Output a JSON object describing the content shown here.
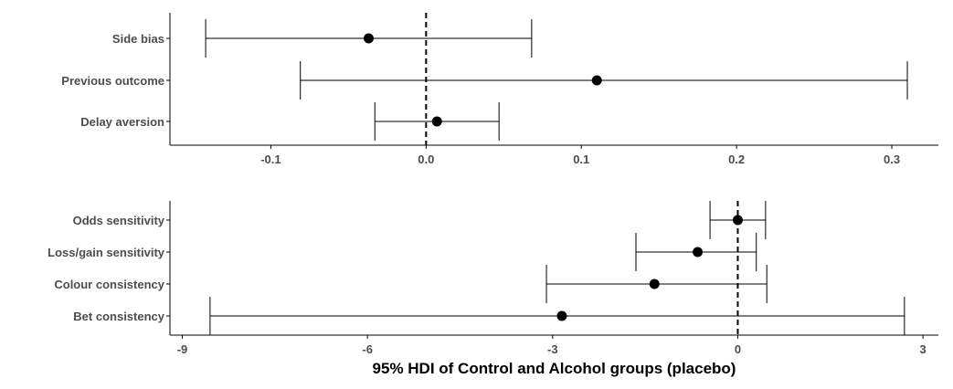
{
  "chart_data": [
    {
      "type": "forest",
      "xlabel": "",
      "ylabel": "",
      "xlim": [
        -0.165,
        0.33
      ],
      "xticks": [
        -0.1,
        0.0,
        0.1,
        0.2,
        0.3
      ],
      "xtick_labels": [
        "-0.1",
        "0.0",
        "0.1",
        "0.2",
        "0.3"
      ],
      "reference_line": 0,
      "grid": false,
      "series": [
        {
          "label": "Side bias",
          "estimate": -0.037,
          "lower": -0.142,
          "upper": 0.068
        },
        {
          "label": "Previous outcome",
          "estimate": 0.11,
          "lower": -0.081,
          "upper": 0.31
        },
        {
          "label": "Delay aversion",
          "estimate": 0.007,
          "lower": -0.033,
          "upper": 0.047
        }
      ]
    },
    {
      "type": "forest",
      "xlabel": "95% HDI of Control and Alcohol groups (placebo)",
      "ylabel": "",
      "xlim": [
        -9.2,
        3.25
      ],
      "xticks": [
        -9,
        -6,
        -3,
        0,
        3
      ],
      "xtick_labels": [
        "-9",
        "-6",
        "-3",
        "0",
        "3"
      ],
      "reference_line": 0,
      "grid": false,
      "series": [
        {
          "label": "Odds sensitivity",
          "estimate": 0.0,
          "lower": -0.45,
          "upper": 0.45
        },
        {
          "label": "Loss/gain sensitivity",
          "estimate": -0.65,
          "lower": -1.65,
          "upper": 0.3
        },
        {
          "label": "Colour consistency",
          "estimate": -1.35,
          "lower": -3.1,
          "upper": 0.47
        },
        {
          "label": "Bet consistency",
          "estimate": -2.85,
          "lower": -8.55,
          "upper": 2.7
        }
      ]
    }
  ],
  "colors": {
    "ink": "#000000",
    "axis_text": "#4d4d4d",
    "background": "#ffffff"
  }
}
